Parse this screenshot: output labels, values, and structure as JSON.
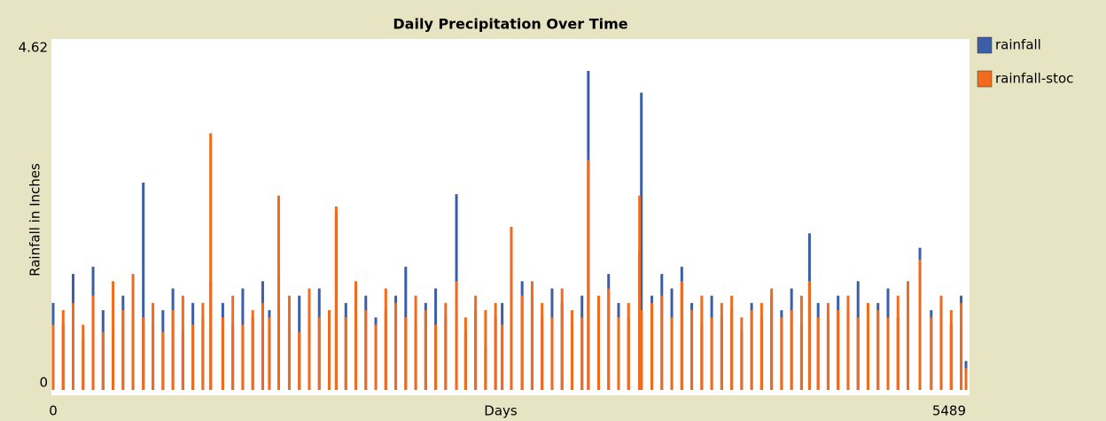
{
  "chart_data": {
    "type": "bar",
    "title": "Daily Precipitation Over Time",
    "x_label": "Days",
    "y_label": "Rainfall in Inches",
    "x": [
      0,
      60,
      120,
      180,
      240,
      300,
      360,
      420,
      480,
      542,
      600,
      660,
      720,
      780,
      840,
      900,
      947,
      1020,
      1080,
      1140,
      1200,
      1260,
      1300,
      1356,
      1420,
      1480,
      1540,
      1600,
      1660,
      1702,
      1760,
      1820,
      1880,
      1940,
      2000,
      2060,
      2120,
      2180,
      2240,
      2300,
      2360,
      2425,
      2480,
      2540,
      2600,
      2660,
      2700,
      2755,
      2820,
      2880,
      2940,
      3000,
      3060,
      3120,
      3180,
      3218,
      3280,
      3340,
      3400,
      3460,
      3526,
      3537,
      3600,
      3660,
      3720,
      3780,
      3840,
      3900,
      3960,
      4020,
      4080,
      4140,
      4200,
      4260,
      4320,
      4380,
      4440,
      4500,
      4548,
      4600,
      4660,
      4720,
      4780,
      4840,
      4900,
      4960,
      5020,
      5080,
      5140,
      5212,
      5280,
      5340,
      5400,
      5460,
      5489
    ],
    "series": [
      {
        "name": "rainfall",
        "color": "#3b5ea6",
        "values": [
          1.2,
          0.9,
          1.6,
          0.7,
          1.7,
          1.1,
          0.8,
          1.3,
          1.0,
          2.86,
          0.9,
          1.1,
          1.4,
          0.8,
          1.2,
          1.0,
          1.5,
          1.2,
          0.9,
          1.4,
          1.0,
          1.5,
          1.1,
          1.6,
          0.9,
          1.3,
          1.2,
          1.4,
          0.8,
          2.45,
          1.2,
          0.9,
          1.3,
          1.0,
          1.1,
          1.3,
          1.7,
          0.9,
          1.2,
          1.4,
          1.0,
          2.7,
          0.8,
          1.1,
          0.6,
          1.0,
          1.2,
          2.1,
          1.5,
          1.3,
          1.0,
          1.4,
          1.2,
          0.9,
          1.3,
          4.4,
          1.1,
          1.6,
          1.2,
          1.0,
          1.9,
          4.1,
          1.3,
          1.6,
          1.4,
          1.7,
          1.2,
          0.9,
          1.3,
          1.0,
          1.1,
          0.8,
          1.2,
          1.0,
          1.3,
          1.1,
          1.4,
          0.9,
          2.16,
          1.2,
          1.0,
          1.3,
          1.1,
          1.5,
          0.9,
          1.2,
          1.4,
          1.0,
          1.3,
          1.96,
          1.1,
          1.2,
          0.9,
          1.3,
          0.4
        ]
      },
      {
        "name": "rainfall-stoc",
        "color": "#f26a1b",
        "values": [
          0.9,
          1.1,
          1.2,
          0.9,
          1.3,
          0.8,
          1.5,
          1.1,
          1.6,
          1.0,
          1.2,
          0.8,
          1.1,
          1.3,
          0.9,
          1.2,
          3.54,
          1.0,
          1.3,
          0.9,
          1.1,
          1.2,
          1.0,
          2.68,
          1.3,
          0.8,
          1.4,
          1.0,
          1.1,
          2.53,
          1.0,
          1.5,
          1.1,
          0.9,
          1.4,
          1.2,
          1.0,
          1.3,
          1.1,
          0.9,
          1.2,
          1.5,
          1.0,
          1.3,
          1.1,
          1.2,
          0.9,
          2.25,
          1.3,
          1.5,
          1.2,
          1.0,
          1.4,
          1.1,
          1.0,
          3.17,
          1.3,
          1.4,
          1.0,
          1.2,
          2.68,
          1.1,
          1.2,
          1.3,
          1.0,
          1.5,
          1.1,
          1.3,
          1.0,
          1.2,
          1.3,
          1.0,
          1.1,
          1.2,
          1.4,
          1.0,
          1.1,
          1.3,
          1.5,
          1.0,
          1.2,
          1.1,
          1.3,
          1.0,
          1.2,
          1.1,
          1.0,
          1.3,
          1.5,
          1.8,
          1.0,
          1.3,
          1.1,
          1.2,
          0.3
        ]
      }
    ],
    "xlim": [
      0,
      5489
    ],
    "xticks": [
      0,
      5489
    ],
    "ylim": [
      0,
      4.62
    ],
    "yticks": [
      0,
      4.62
    ],
    "legend": "right"
  }
}
